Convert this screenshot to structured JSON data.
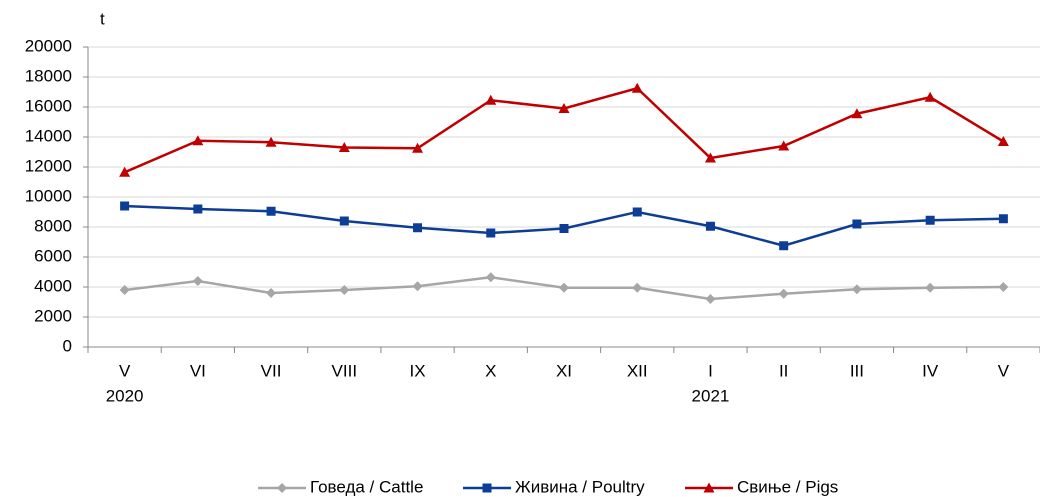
{
  "chart_data": {
    "type": "line",
    "y_label": "t",
    "categories": [
      "V",
      "VI",
      "VII",
      "VIII",
      "IX",
      "X",
      "XI",
      "XII",
      "I",
      "II",
      "III",
      "IV",
      "V"
    ],
    "year_labels": [
      "2020",
      null,
      null,
      null,
      null,
      null,
      null,
      null,
      "2021",
      null,
      null,
      null,
      null
    ],
    "series": [
      {
        "name": "Говеда / Cattle",
        "color": "#a6a6a6",
        "marker": "diamond",
        "values": [
          3800,
          4400,
          3600,
          3800,
          4050,
          4650,
          3950,
          3950,
          3200,
          3550,
          3850,
          3950,
          4000
        ]
      },
      {
        "name": "Живина / Poultry",
        "color": "#0d3d94",
        "marker": "square",
        "values": [
          9400,
          9200,
          9050,
          8400,
          7950,
          7600,
          7900,
          9000,
          8050,
          6750,
          8200,
          8450,
          8550
        ]
      },
      {
        "name": "Свиње / Pigs",
        "color": "#c00000",
        "marker": "triangle",
        "values": [
          11650,
          13750,
          13650,
          13300,
          13250,
          16450,
          15900,
          17250,
          12600,
          13400,
          15550,
          16650,
          13700
        ]
      }
    ],
    "ylim": [
      0,
      20000
    ],
    "yticks": [
      0,
      2000,
      4000,
      6000,
      8000,
      10000,
      12000,
      14000,
      16000,
      18000,
      20000
    ],
    "grid": true,
    "legend": "bottom"
  }
}
